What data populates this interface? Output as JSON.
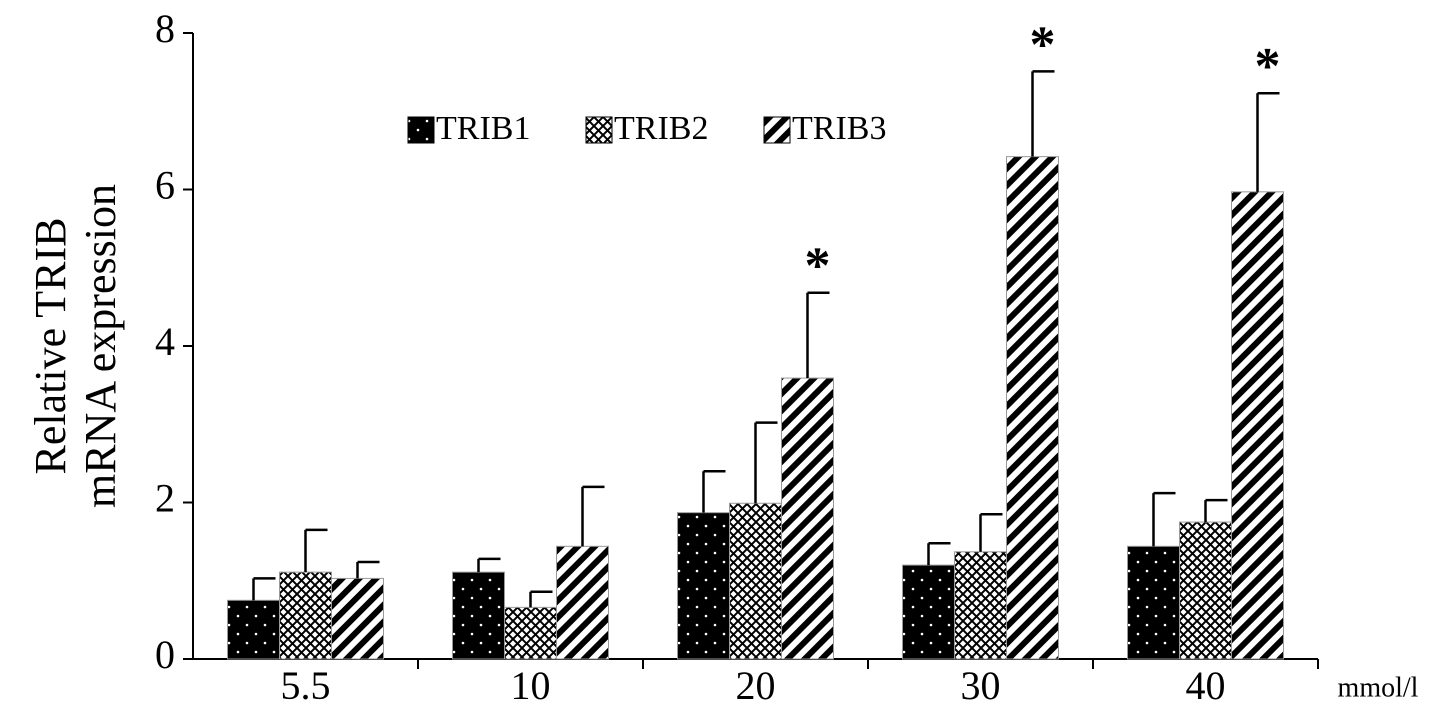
{
  "chart_data": {
    "type": "bar",
    "ylabel": [
      "Relative TRIB",
      "mRNA expression"
    ],
    "xlabel": "mmol/l",
    "categories": [
      "5.5",
      "10",
      "20",
      "30",
      "40"
    ],
    "series": [
      {
        "name": "TRIB1",
        "color": "#000000",
        "pattern": "dots",
        "values": [
          0.75,
          1.11,
          1.87,
          1.2,
          1.44
        ],
        "errors": [
          0.28,
          0.17,
          0.53,
          0.28,
          0.68
        ]
      },
      {
        "name": "TRIB2",
        "color": "#000000",
        "pattern": "crosshatch",
        "values": [
          1.11,
          0.66,
          1.99,
          1.37,
          1.75
        ],
        "errors": [
          0.54,
          0.2,
          1.03,
          0.48,
          0.28
        ]
      },
      {
        "name": "TRIB3",
        "color": "#000000",
        "pattern": "diagonal",
        "values": [
          1.03,
          1.44,
          3.59,
          6.42,
          5.97
        ],
        "errors": [
          0.21,
          0.76,
          1.09,
          1.09,
          1.26
        ],
        "significance": [
          null,
          null,
          "*",
          "*",
          "*"
        ]
      }
    ],
    "ylim": [
      0,
      8
    ],
    "yticks": [
      0,
      2,
      4,
      6,
      8
    ],
    "grid": false
  }
}
